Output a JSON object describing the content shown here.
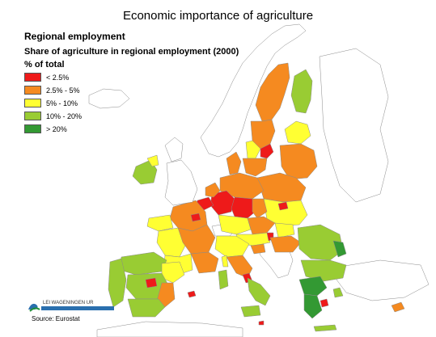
{
  "header": {
    "title": "Economic importance of agriculture",
    "subtitle": "Regional employment",
    "map_title": "Share of agriculture in regional employment (2000)",
    "unit": "% of total"
  },
  "legend": [
    {
      "label": "< 2.5%",
      "color": "#ee1a1a"
    },
    {
      "label": "2.5% - 5%",
      "color": "#f58a20"
    },
    {
      "label": "5% - 10%",
      "color": "#ffff33"
    },
    {
      "label": "10% - 20%",
      "color": "#99cc33"
    },
    {
      "label": "> 20%",
      "color": "#339933"
    }
  ],
  "logo": {
    "text": "LEI WAGENINGEN UR"
  },
  "footer": {
    "source": "Source: Eurostat"
  }
}
